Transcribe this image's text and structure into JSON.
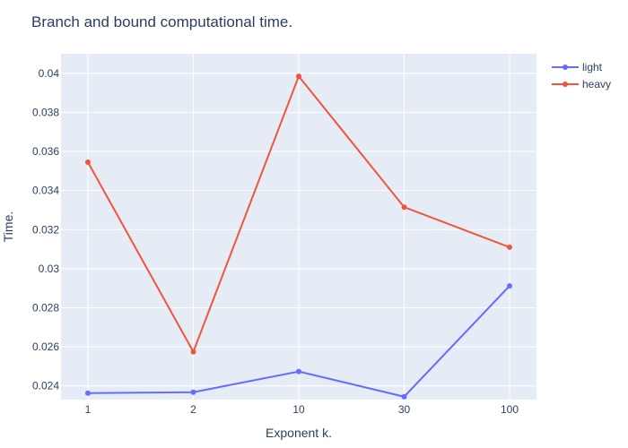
{
  "chart_data": {
    "type": "line",
    "title": "Branch and bound computational time.",
    "xlabel": "Exponent k.",
    "ylabel": "Time.",
    "categories": [
      "1",
      "2",
      "10",
      "30",
      "100"
    ],
    "ylim": [
      0.0233,
      0.041
    ],
    "yticks": [
      0.024,
      0.026,
      0.028,
      0.03,
      0.032,
      0.034,
      0.036,
      0.038,
      0.04
    ],
    "ytick_labels": [
      "0.024",
      "0.026",
      "0.028",
      "0.03",
      "0.032",
      "0.034",
      "0.036",
      "0.038",
      "0.04"
    ],
    "grid": true,
    "legend_position": "top-right",
    "series": [
      {
        "name": "light",
        "color": "#636efa",
        "values": [
          0.02363,
          0.02368,
          0.02474,
          0.02345,
          0.02912
        ]
      },
      {
        "name": "heavy",
        "color": "#ef553b",
        "values": [
          0.03545,
          0.02575,
          0.03985,
          0.03315,
          0.0311
        ]
      }
    ],
    "background_color": "#e5ecf6",
    "grid_color": "#ffffff"
  }
}
